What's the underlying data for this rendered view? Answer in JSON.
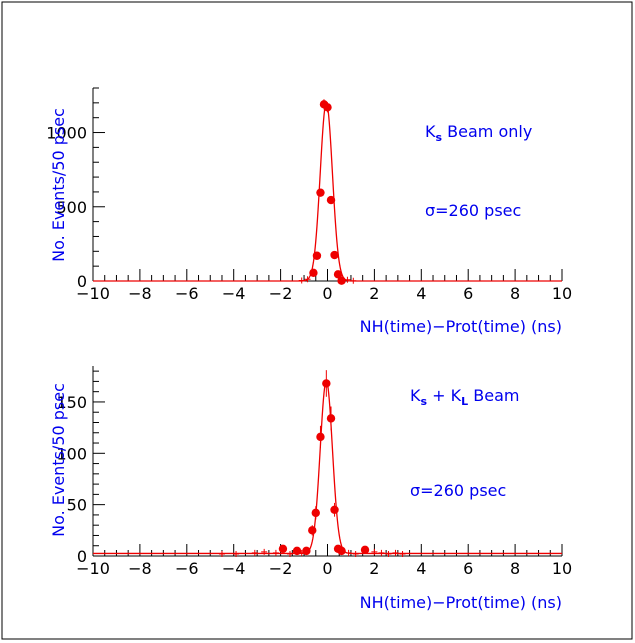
{
  "colors": {
    "data": "#ee0000",
    "text": "#0000ee",
    "axis": "#000000",
    "frame": "#000000"
  },
  "chart_data": [
    {
      "type": "scatter",
      "title": "",
      "xlabel": "NH(time)−Prot(time) (ns)",
      "ylabel": "No. Events/50 psec",
      "xlim": [
        -10,
        10
      ],
      "ylim": [
        0,
        1300
      ],
      "x_ticks": [
        -10,
        -8,
        -6,
        -4,
        -2,
        0,
        2,
        4,
        6,
        8,
        10
      ],
      "x_tick_labels": [
        "−10",
        "−8",
        "−6",
        "−4",
        "−2",
        "0",
        "2",
        "4",
        "6",
        "8",
        "10"
      ],
      "y_ticks": [
        0,
        500,
        1000
      ],
      "y_tick_labels": [
        "0",
        "500",
        "1000"
      ],
      "annotations": [
        {
          "main": "K",
          "sub": "s",
          "rest": " Beam only"
        },
        {
          "main": "σ=260 psec",
          "sub": "",
          "rest": ""
        }
      ],
      "markers": {
        "x": [
          -0.6,
          -0.45,
          -0.3,
          -0.15,
          0,
          0.15,
          0.3,
          0.45,
          0.6
        ],
        "y": [
          55,
          170,
          595,
          1190,
          1170,
          545,
          175,
          45,
          2
        ]
      },
      "crosses": {
        "x": [
          -1.1,
          -0.85,
          0.85,
          1.1
        ],
        "y": [
          3,
          12,
          8,
          2
        ]
      },
      "fit": {
        "type": "gaussian",
        "amplitude": 1200,
        "mean": -0.05,
        "sigma": 0.26,
        "baseline": 0
      }
    },
    {
      "type": "scatter",
      "title": "",
      "xlabel": "NH(time)−Prot(time) (ns)",
      "ylabel": "No. Events/50 psec",
      "xlim": [
        -10,
        10
      ],
      "ylim": [
        0,
        185
      ],
      "x_ticks": [
        -10,
        -8,
        -6,
        -4,
        -2,
        0,
        2,
        4,
        6,
        8,
        10
      ],
      "x_tick_labels": [
        "−10",
        "−8",
        "−6",
        "−4",
        "−2",
        "0",
        "2",
        "4",
        "6",
        "8",
        "10"
      ],
      "y_ticks": [
        0,
        50,
        100,
        150
      ],
      "y_tick_labels": [
        "0",
        "50",
        "100",
        "150"
      ],
      "annotations": [
        {
          "main": "K",
          "sub": "s",
          "rest": " + K",
          "sub2": "L",
          "rest2": " Beam"
        },
        {
          "main": "σ=260 psec",
          "sub": "",
          "rest": ""
        }
      ],
      "markers": {
        "x": [
          -1.9,
          -1.3,
          -0.9,
          -0.65,
          -0.5,
          -0.3,
          -0.05,
          0.15,
          0.3,
          0.45,
          0.6,
          1.6
        ],
        "y": [
          7,
          5,
          5,
          25,
          42,
          116,
          168,
          134,
          45,
          7,
          5,
          6
        ]
      },
      "crosses": {
        "x": [
          -4.5,
          -3.9,
          -3.1,
          -2.7,
          -2.2,
          -1.6,
          -1.1,
          0.9,
          1.2,
          2.0,
          2.3,
          2.6,
          2.9,
          3.2
        ],
        "y": [
          2,
          2,
          3,
          4,
          3,
          2,
          3,
          3,
          2,
          4,
          3,
          2,
          3,
          2
        ]
      },
      "fit": {
        "type": "gaussian",
        "amplitude": 168,
        "mean": -0.05,
        "sigma": 0.26,
        "baseline": 2.5
      }
    }
  ]
}
